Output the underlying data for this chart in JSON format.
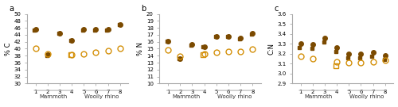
{
  "panel_a": {
    "title": "a",
    "ylabel": "% C",
    "ylim": [
      30,
      50
    ],
    "yticks": [
      30,
      32,
      34,
      36,
      38,
      40,
      42,
      44,
      46,
      48,
      50
    ],
    "filled_circles": [
      45.5,
      38.2,
      44.5,
      42.5,
      45.5,
      45.5,
      45.5,
      47.0
    ],
    "filled_squares": [
      45.5,
      38.2,
      44.5,
      42.5,
      45.5,
      45.5,
      45.5,
      47.0
    ],
    "open_circles": [
      40.0,
      38.5,
      null,
      38.3,
      38.5,
      39.0,
      39.5,
      40.0
    ],
    "open_squares": [
      null,
      null,
      null,
      38.3,
      null,
      null,
      null,
      null
    ]
  },
  "panel_b": {
    "title": "b",
    "ylabel": "% N",
    "ylim": [
      10,
      20
    ],
    "yticks": [
      10,
      11,
      12,
      13,
      14,
      15,
      16,
      17,
      18,
      19,
      20
    ],
    "filled_circles": [
      16.1,
      13.6,
      15.6,
      15.3,
      16.8,
      16.8,
      16.5,
      17.2
    ],
    "filled_squares": [
      16.1,
      13.6,
      15.6,
      15.3,
      16.8,
      16.8,
      16.5,
      17.2
    ],
    "open_circles": [
      14.8,
      13.9,
      null,
      14.2,
      14.5,
      14.6,
      14.6,
      14.9
    ],
    "open_squares": [
      null,
      null,
      null,
      14.2,
      null,
      null,
      null,
      null
    ]
  },
  "panel_c": {
    "title": "c",
    "ylabel": "C:N",
    "ylim": [
      2.9,
      3.6
    ],
    "yticks": [
      2.9,
      3.0,
      3.1,
      3.2,
      3.3,
      3.4,
      3.5,
      3.6
    ],
    "filled_circles": [
      3.3,
      3.29,
      3.36,
      3.26,
      3.2,
      3.2,
      3.21,
      3.18
    ],
    "filled_squares": [
      3.3,
      3.29,
      3.36,
      3.26,
      3.2,
      3.2,
      3.21,
      3.18
    ],
    "open_circles": [
      3.17,
      3.15,
      null,
      3.12,
      3.11,
      3.11,
      3.12,
      3.13
    ],
    "open_squares": [
      null,
      null,
      null,
      3.12,
      null,
      null,
      null,
      null
    ]
  },
  "x_labels": [
    1,
    2,
    3,
    4,
    5,
    6,
    7,
    8
  ],
  "mammoth_label": "Mammoth",
  "rhino_label": "Woolly rhino",
  "filled_color": "#7B4A00",
  "open_color": "#D4900A",
  "bg_color": "#ffffff",
  "spine_color": "#aaaaaa",
  "circle_size": 4.0,
  "square_size": 3.5,
  "open_circle_size": 5.0,
  "open_square_size": 4.0
}
